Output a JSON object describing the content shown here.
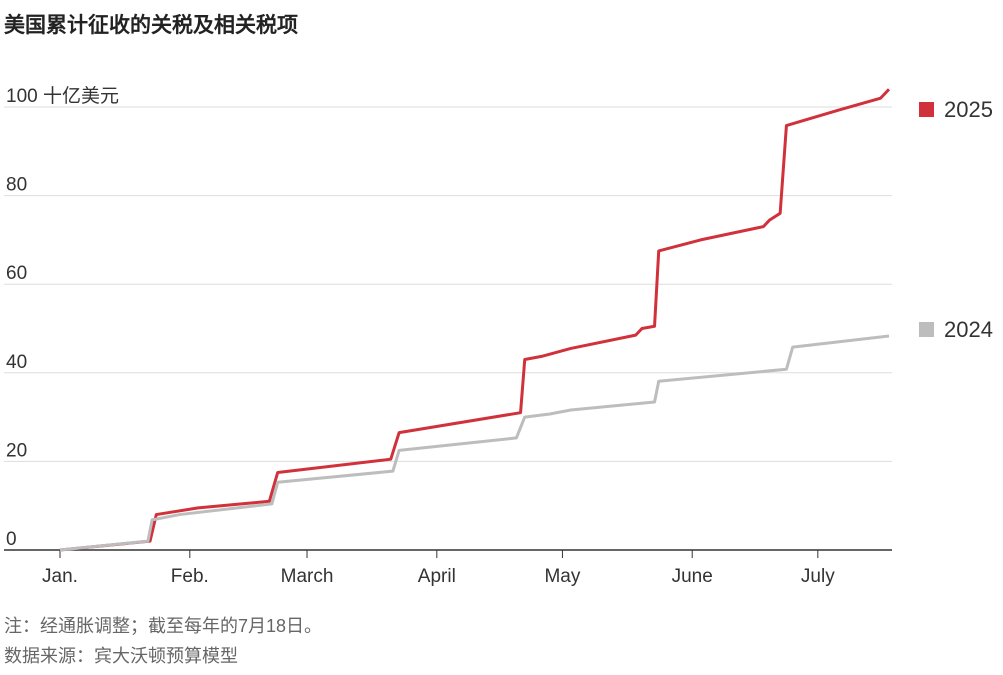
{
  "chart_data": {
    "type": "line",
    "title": "美国累计征收的关税及相关税项",
    "notes": [
      "注：经通胀调整；截至每年的7月18日。",
      "数据来源：宾大沃顿预算模型"
    ],
    "xlim": [
      0,
      198
    ],
    "xticks": [
      {
        "value": 0,
        "label": "Jan."
      },
      {
        "value": 31,
        "label": "Feb."
      },
      {
        "value": 59,
        "label": "March"
      },
      {
        "value": 90,
        "label": "April"
      },
      {
        "value": 120,
        "label": "May"
      },
      {
        "value": 151,
        "label": "June"
      },
      {
        "value": 181,
        "label": "July"
      }
    ],
    "ylim": [
      0,
      100
    ],
    "yticks": [
      0,
      20,
      40,
      60,
      80,
      {
        "value": 100,
        "label": "100 十亿美元"
      }
    ],
    "grid": true,
    "series": [
      {
        "name": "2025",
        "color": "#d0313b",
        "x": [
          0,
          21.5,
          23,
          33,
          50,
          52,
          79,
          81,
          110,
          111,
          115,
          122,
          137.5,
          139,
          142,
          143,
          153,
          168,
          169.5,
          172,
          173.5,
          186,
          196,
          198
        ],
        "values": [
          0,
          2,
          8,
          9.5,
          11,
          17.5,
          20.5,
          26.5,
          31,
          43,
          43.7,
          45.5,
          48.5,
          50,
          50.5,
          67.5,
          70,
          73,
          74.5,
          76,
          95.8,
          99.3,
          102,
          104
        ]
      },
      {
        "name": "2024",
        "color": "#bdbdbd",
        "x": [
          0,
          21,
          22,
          28.6,
          50.6,
          52,
          79.5,
          81,
          109,
          111,
          117,
          122,
          142,
          143,
          173.5,
          175,
          198
        ],
        "values": [
          0,
          2,
          6.8,
          8,
          10.4,
          15.3,
          17.8,
          22.5,
          25.3,
          30,
          30.7,
          31.6,
          33.4,
          38.1,
          40.8,
          45.8,
          48.3
        ]
      }
    ]
  }
}
